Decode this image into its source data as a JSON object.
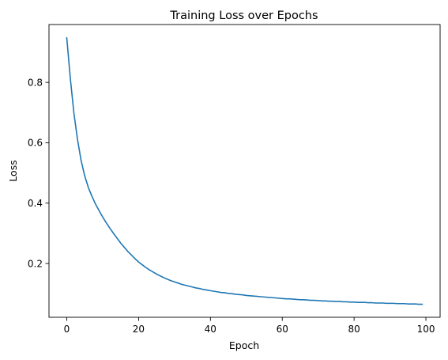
{
  "chart_data": {
    "type": "line",
    "title": "Training Loss over Epochs",
    "xlabel": "Epoch",
    "ylabel": "Loss",
    "xlim": [
      -4.95,
      103.95
    ],
    "ylim": [
      0.0218,
      0.9918
    ],
    "x_ticks": [
      0,
      20,
      40,
      60,
      80,
      100
    ],
    "x_tick_labels": [
      "0",
      "20",
      "40",
      "60",
      "80",
      "100"
    ],
    "y_ticks": [
      0.2,
      0.4,
      0.6,
      0.8
    ],
    "y_tick_labels": [
      "0.2",
      "0.4",
      "0.6",
      "0.8"
    ],
    "grid": false,
    "series": [
      {
        "color": "#1f77b4",
        "x": [
          0,
          1,
          2,
          3,
          4,
          5,
          6,
          7,
          8,
          9,
          10,
          11,
          12,
          13,
          14,
          15,
          16,
          17,
          18,
          19,
          20,
          21,
          22,
          23,
          24,
          25,
          26,
          27,
          28,
          29,
          30,
          31,
          32,
          33,
          34,
          35,
          36,
          37,
          38,
          39,
          40,
          41,
          42,
          43,
          44,
          45,
          46,
          47,
          48,
          49,
          50,
          51,
          52,
          53,
          54,
          55,
          56,
          57,
          58,
          59,
          60,
          61,
          62,
          63,
          64,
          65,
          66,
          67,
          68,
          69,
          70,
          71,
          72,
          73,
          74,
          75,
          76,
          77,
          78,
          79,
          80,
          81,
          82,
          83,
          84,
          85,
          86,
          87,
          88,
          89,
          90,
          91,
          92,
          93,
          94,
          95,
          96,
          97,
          98,
          99
        ],
        "values": [
          0.948,
          0.812,
          0.697,
          0.61,
          0.541,
          0.49,
          0.452,
          0.423,
          0.397,
          0.375,
          0.354,
          0.335,
          0.317,
          0.3,
          0.284,
          0.268,
          0.254,
          0.24,
          0.228,
          0.216,
          0.205,
          0.196,
          0.187,
          0.179,
          0.172,
          0.165,
          0.159,
          0.153,
          0.148,
          0.143,
          0.139,
          0.135,
          0.131,
          0.128,
          0.125,
          0.122,
          0.119,
          0.117,
          0.114,
          0.112,
          0.11,
          0.108,
          0.106,
          0.104,
          0.103,
          0.101,
          0.1,
          0.098,
          0.097,
          0.096,
          0.094,
          0.093,
          0.092,
          0.091,
          0.09,
          0.089,
          0.088,
          0.087,
          0.086,
          0.085,
          0.084,
          0.083,
          0.083,
          0.082,
          0.081,
          0.08,
          0.08,
          0.079,
          0.078,
          0.078,
          0.077,
          0.076,
          0.076,
          0.075,
          0.075,
          0.074,
          0.074,
          0.073,
          0.073,
          0.072,
          0.072,
          0.071,
          0.071,
          0.071,
          0.07,
          0.07,
          0.069,
          0.069,
          0.069,
          0.068,
          0.068,
          0.068,
          0.067,
          0.067,
          0.067,
          0.066,
          0.066,
          0.066,
          0.065,
          0.065
        ]
      }
    ]
  }
}
